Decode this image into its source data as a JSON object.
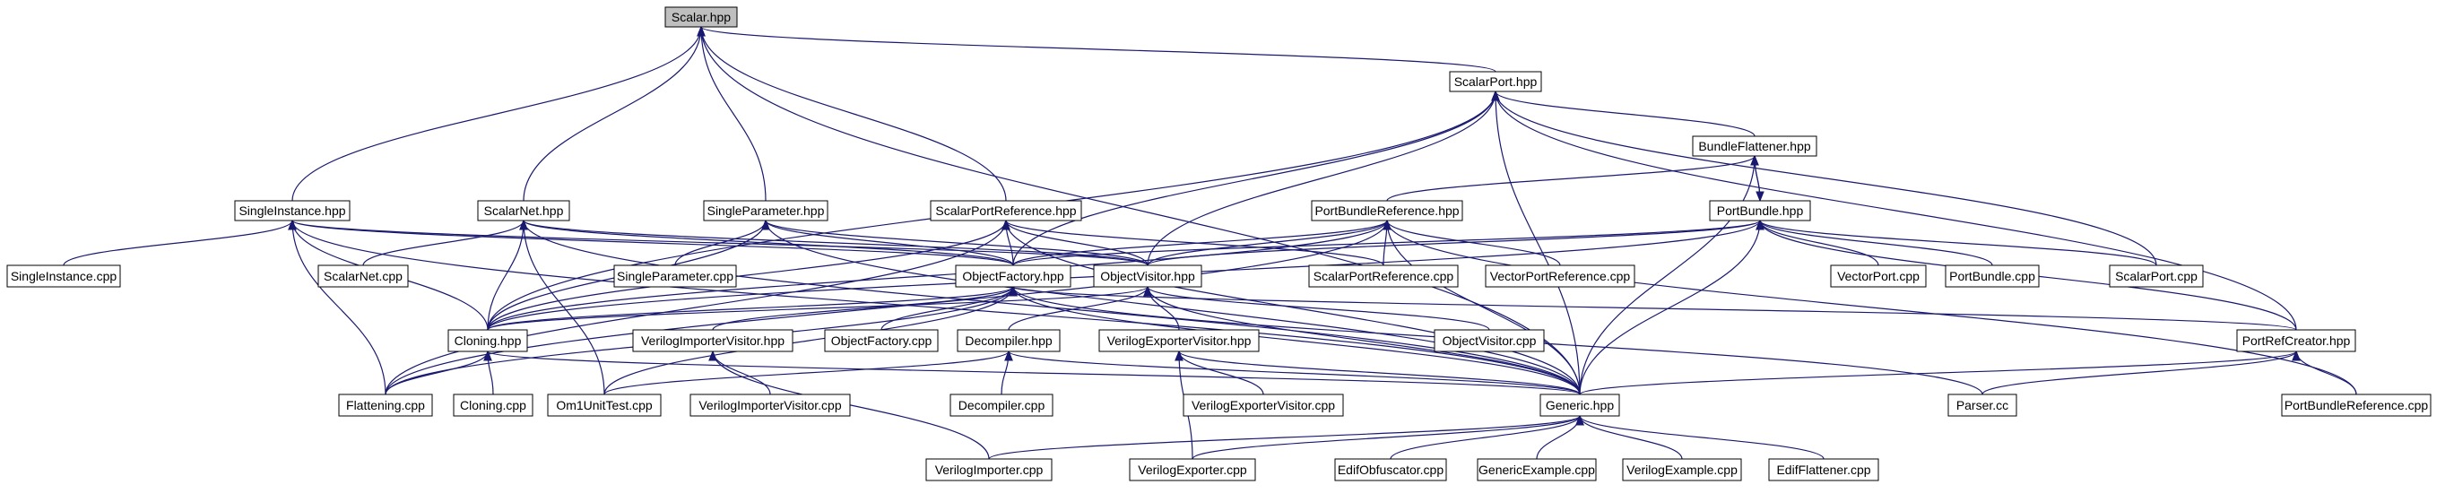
{
  "title": "Scalar.hpp",
  "colors": {
    "edge": "#191970",
    "root_fill": "#bfbfbf",
    "node_fill": "#ffffff",
    "border": "#000000"
  },
  "nodes": [
    {
      "id": "scalar_hpp",
      "label": "Scalar.hpp",
      "root": true
    },
    {
      "id": "scalarport_hpp",
      "label": "ScalarPort.hpp"
    },
    {
      "id": "bundleflattener_hpp",
      "label": "BundleFlattener.hpp"
    },
    {
      "id": "portbundle_hpp",
      "label": "PortBundle.hpp"
    },
    {
      "id": "singleinstance_hpp",
      "label": "SingleInstance.hpp"
    },
    {
      "id": "scalarnet_hpp",
      "label": "ScalarNet.hpp"
    },
    {
      "id": "singleparameter_hpp",
      "label": "SingleParameter.hpp"
    },
    {
      "id": "scalarportreference_hpp",
      "label": "ScalarPortReference.hpp"
    },
    {
      "id": "portbundlereference_hpp",
      "label": "PortBundleReference.hpp"
    },
    {
      "id": "singleinstance_cpp",
      "label": "SingleInstance.cpp"
    },
    {
      "id": "scalarnet_cpp",
      "label": "ScalarNet.cpp"
    },
    {
      "id": "singleparameter_cpp",
      "label": "SingleParameter.cpp"
    },
    {
      "id": "objectfactory_hpp",
      "label": "ObjectFactory.hpp"
    },
    {
      "id": "objectvisitor_hpp",
      "label": "ObjectVisitor.hpp"
    },
    {
      "id": "scalarportreference_cpp",
      "label": "ScalarPortReference.cpp"
    },
    {
      "id": "vectorportreference_cpp",
      "label": "VectorPortReference.cpp"
    },
    {
      "id": "vectorport_cpp",
      "label": "VectorPort.cpp"
    },
    {
      "id": "portbundle_cpp",
      "label": "PortBundle.cpp"
    },
    {
      "id": "scalarport_cpp",
      "label": "ScalarPort.cpp"
    },
    {
      "id": "cloning_hpp",
      "label": "Cloning.hpp"
    },
    {
      "id": "verilogimportervisitor_hpp",
      "label": "VerilogImporterVisitor.hpp"
    },
    {
      "id": "objectfactory_cpp",
      "label": "ObjectFactory.cpp"
    },
    {
      "id": "decompiler_hpp",
      "label": "Decompiler.hpp"
    },
    {
      "id": "verilogexportervisitor_hpp",
      "label": "VerilogExporterVisitor.hpp"
    },
    {
      "id": "objectvisitor_cpp",
      "label": "ObjectVisitor.cpp"
    },
    {
      "id": "portrefcreator_hpp",
      "label": "PortRefCreator.hpp"
    },
    {
      "id": "flattening_cpp",
      "label": "Flattening.cpp"
    },
    {
      "id": "cloning_cpp",
      "label": "Cloning.cpp"
    },
    {
      "id": "om1unittest_cpp",
      "label": "Om1UnitTest.cpp"
    },
    {
      "id": "verilogimportervisitor_cpp",
      "label": "VerilogImporterVisitor.cpp"
    },
    {
      "id": "decompiler_cpp",
      "label": "Decompiler.cpp"
    },
    {
      "id": "verilogexportervisitor_cpp",
      "label": "VerilogExporterVisitor.cpp"
    },
    {
      "id": "generic_hpp",
      "label": "Generic.hpp"
    },
    {
      "id": "parser_cc",
      "label": "Parser.cc"
    },
    {
      "id": "portbundlereference_cpp",
      "label": "PortBundleReference.cpp"
    },
    {
      "id": "verilogimporter_cpp",
      "label": "VerilogImporter.cpp"
    },
    {
      "id": "verilogexporter_cpp",
      "label": "VerilogExporter.cpp"
    },
    {
      "id": "edifobfuscator_cpp",
      "label": "EdifObfuscator.cpp"
    },
    {
      "id": "genericexample_cpp",
      "label": "GenericExample.cpp"
    },
    {
      "id": "verilogexample_cpp",
      "label": "VerilogExample.cpp"
    },
    {
      "id": "ediflattener_cpp",
      "label": "EdifFlattener.cpp"
    }
  ]
}
